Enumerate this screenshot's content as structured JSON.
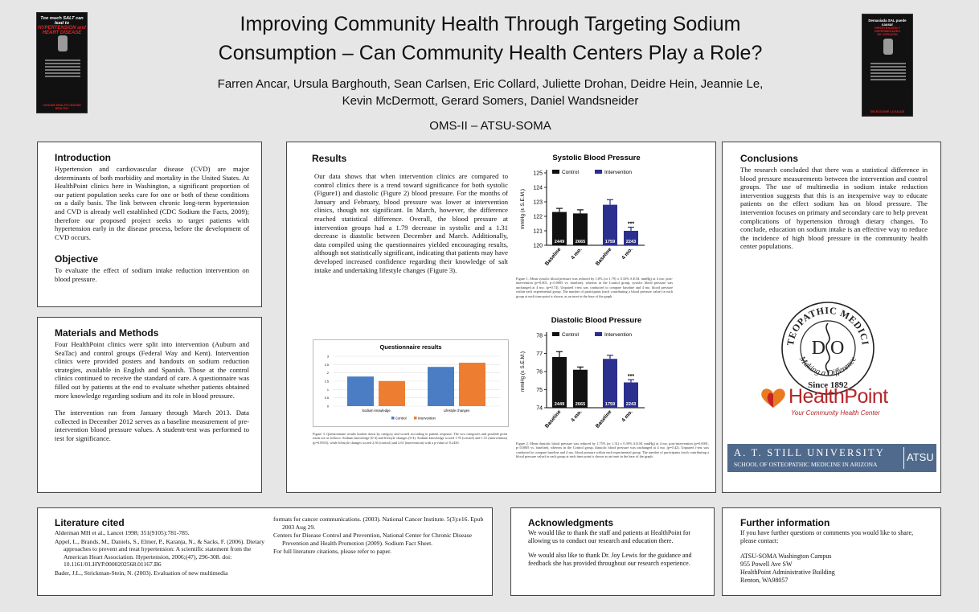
{
  "header": {
    "title_line1": "Improving Community Health Through Targeting Sodium",
    "title_line2": "Consumption – Can Community Health Centers Play a Role?",
    "authors_line1": "Farren Ancar, Ursula Barghouth,  Sean Carlsen, Eric Collard, Juliette Drohan, Deidre Hein, Jeannie Le,",
    "authors_line2": "Kevin McDermott, Gerard Somers, Daniel Wandsneider",
    "affiliation": "OMS-II – ATSU-SOMA",
    "left_thumb": {
      "line1": "Too much SALT can lead to",
      "line2": "HYPERTENSION and",
      "line3": "HEART DISEASE",
      "footer": "CHOOSE HEALTH CHOOSE HEALTHY"
    },
    "right_thumb": {
      "line1": "Demasiada SAL puede causar",
      "line2": "HIPERTENSIÓN Y ENFERMEDADES",
      "line3": "DE CORAZÓN",
      "footer": "SELECCIONE LA SALUD"
    }
  },
  "introduction": {
    "title": "Introduction",
    "text": "Hypertension and cardiovascular disease (CVD) are major determinants of both morbidity and mortality in the United States. At HealthPoint clinics here in Washington, a significant proportion of our patient population seeks care for one or both of these conditions on a daily basis. The link between chronic long-term hypertension and CVD is already well established (CDC Sodium the Facts, 2009); therefore our proposed project seeks to target patients with hypertension early in the disease process, before the development of CVD occurs."
  },
  "objective": {
    "title": "Objective",
    "text": "To evaluate the effect of sodium intake reduction intervention on blood pressure."
  },
  "methods": {
    "title": "Materials and Methods",
    "para1": "Four HealthPoint clinics were split into intervention (Auburn and SeaTac) and control groups (Federal Way and Kent). Intervention clinics were provided posters and handouts on sodium reduction strategies, available in English and Spanish. Those at the control clinics continued to receive the standard of care. A questionnaire was filled out by patients at the end to evaluate whether patients obtained more knowledge regarding sodium and its role in blood pressure.",
    "para2": "The intervention ran from January through March 2013. Data collected in December 2012 serves as a baseline measurement of pre-intervention blood pressure values. A studentt-test was performed to test for significance."
  },
  "results": {
    "title": "Results",
    "text": "Our data shows that when intervention clinics are compared to control clinics there is a trend toward significance for both systolic (Figure1) and diastolic (Figure 2) blood pressure.  For the months of January and February, blood pressure was lower at intervention clinics, though not significant. In March, however, the difference reached statistical difference. Overall, the blood pressure at intervention groups had a 1.79 decrease in systolic and a 1.31 decrease is diastolic between December and March. Additionally, data compiled using the questionnaires yielded encouraging results, although not statistically significant, indicating that patients may have developed increased confidence regarding their knowledge of salt intake and undertaking lifestyle changes (Figure 3).",
    "fig1_caption": "Figure 1.  Mean systolic blood pressure was reduced by 1.8% (or 1.79) ± 0.33% S.E.M. mmHg) at 4 mo. post-intervention (p=0.001, p<0.0005 vs. baseline), whereas in the Control group, systolic blood pressure was unchanged at 4 mo. (p=0.74). Unpaired t-test was conducted to compare baseline and 4 mo. blood pressure within each experimental group. The number of participants (each contributing a blood pressure value) in each group at each time point is shown, as an inset in the base of the graph.",
    "fig2_caption": "Figure 2.  Mean diastolic blood pressure was reduced by 1.75% (or 1.31) ± 0.39% S.E.M. mmHg) at 4 mo. post-intervention (p=0.0001, p<0.0005 vs. baseline), whereas in the Control group, diastolic blood pressure was unchanged at 4 mo. (p=0.42). Unpaired t-test was conducted to compare baseline and 4 mo. blood pressure within each experimental group. The number of participants (each contributing a blood pressure value) in each group at each time point is shown as an inset in the base of the graph.",
    "fig3_caption": "Figure 3.  Questionnaire results broken down by category and scored according to patient response. The two categories and possible point totals are as follows: Sodium knowledge (0-4) and lifestyle changes (0-4). Sodium knowledge scored 1.78 (control) and 1.51 (intervention) (p=0.0935), while lifestyle changes scored 2.36 (control) and 2.61 (intervention) with a p-value of 0.2450."
  },
  "chart_data": [
    {
      "type": "bar",
      "title": "Systolic Blood Pressure",
      "ylabel": "mmHg (± S.E.M.)",
      "ylim": [
        120,
        125
      ],
      "yticks": [
        120,
        121,
        122,
        123,
        124,
        125
      ],
      "categories": [
        "Baseline",
        "4 mo.",
        "Baseline",
        "4 mo."
      ],
      "legend": [
        "Control",
        "Intervention"
      ],
      "bars": [
        {
          "group": "Control",
          "value": 122.3,
          "err": 0.25,
          "n": "2449"
        },
        {
          "group": "Control",
          "value": 122.2,
          "err": 0.25,
          "n": "2665"
        },
        {
          "group": "Intervention",
          "value": 122.8,
          "err": 0.35,
          "n": "1759"
        },
        {
          "group": "Intervention",
          "value": 121.0,
          "err": 0.25,
          "n": "2243",
          "sig": "***"
        }
      ],
      "colors": {
        "Control": "#111111",
        "Intervention": "#2b2f8f"
      }
    },
    {
      "type": "bar",
      "title": "Diastolic Blood Pressure",
      "ylabel": "mmHg (± S.E.M.)",
      "ylim": [
        74,
        78
      ],
      "yticks": [
        74,
        75,
        76,
        77,
        78
      ],
      "categories": [
        "Baseline",
        "4 mo.",
        "Baseline",
        "4 mo."
      ],
      "legend": [
        "Control",
        "Intervention"
      ],
      "bars": [
        {
          "group": "Control",
          "value": 76.8,
          "err": 0.3,
          "n": "2449"
        },
        {
          "group": "Control",
          "value": 76.1,
          "err": 0.15,
          "n": "2665"
        },
        {
          "group": "Intervention",
          "value": 76.7,
          "err": 0.2,
          "n": "1759"
        },
        {
          "group": "Intervention",
          "value": 75.4,
          "err": 0.15,
          "n": "2243",
          "sig": "***"
        }
      ],
      "colors": {
        "Control": "#111111",
        "Intervention": "#2b2f8f"
      }
    },
    {
      "type": "bar",
      "title": "Questionnaire results",
      "ylim": [
        0,
        3
      ],
      "yticks": [
        0,
        0.5,
        1,
        1.5,
        2,
        2.5,
        3
      ],
      "categories": [
        "Sodium knowledge",
        "Lifestyle changes"
      ],
      "series": [
        {
          "name": "Control",
          "values": [
            1.78,
            2.36
          ],
          "color": "#4a7dc4"
        },
        {
          "name": "Intervention",
          "values": [
            1.51,
            2.61
          ],
          "color": "#ed7d31"
        }
      ]
    }
  ],
  "conclusions": {
    "title": "Conclusions",
    "text": "The research concluded that there was a statistical difference in blood pressure measurements between the intervention and control groups. The use of multimedia in sodium intake reduction intervention suggests that this is an inexpensive way to educate patients on the effect sodium has on blood pressure. The intervention focuses on primary and secondary care to help prevent complications of hypertension through dietary changes. To conclude, education on sodium intake is an effective way to reduce the incidence of high blood pressure in the community health center populations."
  },
  "logos": {
    "osteo_top": "OSTEOPATHIC MEDICINE",
    "osteo_mid": "Making a Difference",
    "osteo_bottom": "Since 1892",
    "osteo_initials": "D O",
    "healthpoint_name": "HealthPoint",
    "healthpoint_tag": "Your Community Health Center",
    "atsu_line1": "A. T. STILL UNIVERSITY",
    "atsu_line2": "SCHOOL OF OSTEOPATHIC MEDICINE IN ARIZONA",
    "atsu_abbr": "ATSU"
  },
  "literature": {
    "title": "Literature cited",
    "col1": [
      "Alderman MH et al., Lancet 1998; 351(9105):781-785.",
      "Appel, L., Brands, M., Daniels, S., Elmer, P., Karanja, N., & Sacks, F. (2006). Dietary approaches to prevent and treat hypertension: A scientific statement from the American Heart Association. Hypertension, 2006;(47), 296-308. doi: 10.1161/01.HYP.0000202568.01167.B6",
      "Bader, J.L., Strickman-Stein, N. (2003). Evaluation of new multimedia"
    ],
    "col2": [
      "formats for cancer communications. (2003). National Cancer Institute. 5(3):e16. Epub 2003 Aug 29.",
      "Centers for Disease Control and Prevention, National Center for Chronic Disease Prevention and Health Promotion (2009). Sodium Fact Sheet.",
      "For full literature citations, please refer to paper."
    ]
  },
  "acknowledgments": {
    "title": "Acknowledgments",
    "para1": "We would like to thank the staff and patients at HealthPoint for allowing us to conduct our research and education there.",
    "para2": "We would also like to thank Dr. Joy Lewis for the guidance and feedback she has provided throughout our research experience."
  },
  "further": {
    "title": "Further information",
    "intro": "If you have further questions or comments you would like to share, please contact:",
    "address1": "ATSU-SOMA  Washington Campus",
    "address2": "955 Powell Ave SW",
    "address3": "HealthPoint Administrative Building",
    "address4": "Renton, WA98057"
  }
}
